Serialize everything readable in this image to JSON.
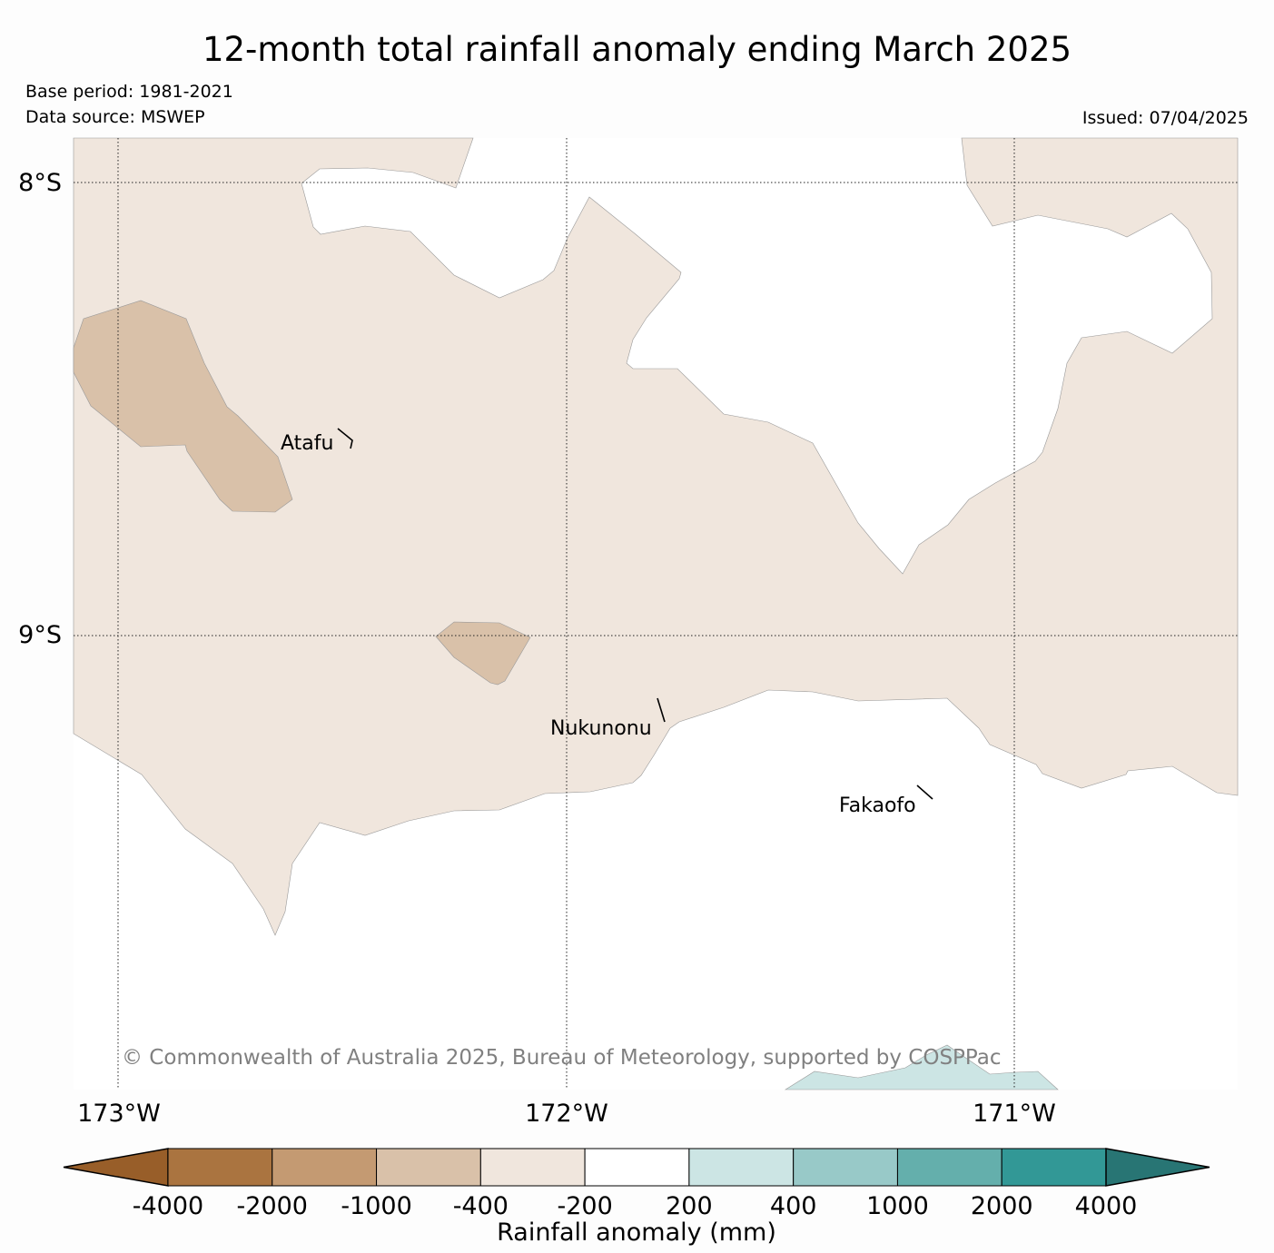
{
  "title": "12-month total rainfall anomaly ending March 2025",
  "base_period": "Base period: 1981-2021",
  "data_source": "Data source: MSWEP",
  "issued": "Issued: 07/04/2025",
  "lat_labels": [
    "8°S",
    "9°S"
  ],
  "lon_labels": [
    "173°W",
    "172°W",
    "171°W"
  ],
  "places": [
    "Atafu",
    "Nukunonu",
    "Fakaofo"
  ],
  "copyright": "© Commonwealth of Australia 2025, Bureau of Meteorology, supported by COSPPac",
  "colorbar": {
    "label": "Rainfall anomaly (mm)",
    "ticks": [
      "-4000",
      "-2000",
      "-1000",
      "-400",
      "-200",
      "200",
      "400",
      "1000",
      "2000",
      "4000"
    ],
    "colors": [
      "#985e29",
      "#aa7440",
      "#c49a72",
      "#d9c1a9",
      "#f0e6dd",
      "#ffffff",
      "#cce5e4",
      "#98c9c8",
      "#64afac",
      "#329896",
      "#287574"
    ]
  }
}
